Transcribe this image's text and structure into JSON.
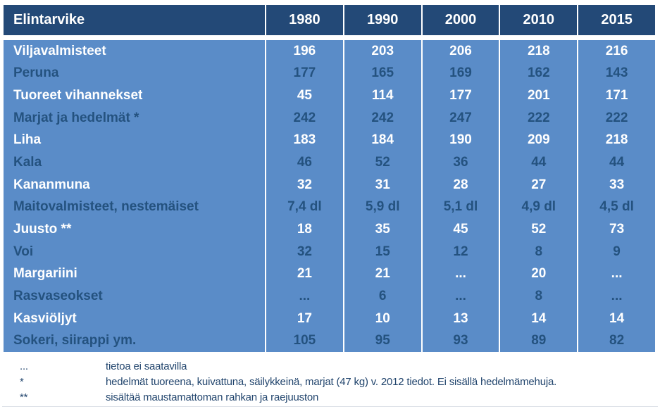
{
  "table": {
    "header_label": "Elintarvike",
    "years": [
      "1980",
      "1990",
      "2000",
      "2010",
      "2015"
    ],
    "rows": [
      {
        "label": "Viljavalmisteet",
        "values": [
          "196",
          "203",
          "206",
          "218",
          "216"
        ]
      },
      {
        "label": "Peruna",
        "values": [
          "177",
          "165",
          "169",
          "162",
          "143"
        ]
      },
      {
        "label": "Tuoreet vihannekset",
        "values": [
          "45",
          "114",
          "177",
          "201",
          "171"
        ]
      },
      {
        "label": "Marjat ja hedelmät *",
        "values": [
          "242",
          "242",
          "247",
          "222",
          "222"
        ]
      },
      {
        "label": "Liha",
        "values": [
          "183",
          "184",
          "190",
          "209",
          "218"
        ]
      },
      {
        "label": "Kala",
        "values": [
          "46",
          "52",
          "36",
          "44",
          "44"
        ]
      },
      {
        "label": "Kananmuna",
        "values": [
          "32",
          "31",
          "28",
          "27",
          "33"
        ]
      },
      {
        "label": "Maitovalmisteet, nestemäiset",
        "values": [
          "7,4 dl",
          "5,9 dl",
          "5,1 dl",
          "4,9 dl",
          "4,5 dl"
        ]
      },
      {
        "label": "Juusto **",
        "values": [
          "18",
          "35",
          "45",
          "52",
          "73"
        ]
      },
      {
        "label": "Voi",
        "values": [
          "32",
          "15",
          "12",
          "8",
          "9"
        ]
      },
      {
        "label": "Margariini",
        "values": [
          "21",
          "21",
          "...",
          "20",
          "..."
        ]
      },
      {
        "label": "Rasvaseokset",
        "values": [
          "...",
          "6",
          "...",
          "8",
          "..."
        ]
      },
      {
        "label": "Kasviöljyt",
        "values": [
          "17",
          "10",
          "13",
          "14",
          "14"
        ]
      },
      {
        "label": "Sokeri, siirappi ym.",
        "values": [
          "105",
          "95",
          "93",
          "89",
          "82"
        ]
      }
    ]
  },
  "footnotes": [
    {
      "marker": "...",
      "text": "tietoa ei saatavilla"
    },
    {
      "marker": "*",
      "text": "hedelmät tuoreena, kuivattuna, säilykkeinä, marjat (47 kg) v. 2012 tiedot. Ei sisällä hedelmämehuja."
    },
    {
      "marker": "**",
      "text": "sisältää maustamattoman rahkan ja raejuuston"
    }
  ],
  "colors": {
    "header_bg": "#234977",
    "body_bg": "#5a8cc8",
    "light_text": "#ffffff",
    "dark_text": "#24527f",
    "footnote_text": "#23466e"
  },
  "chart_data": {
    "type": "table",
    "title": "Elintarvike",
    "columns": [
      "Elintarvike",
      "1980",
      "1990",
      "2000",
      "2010",
      "2015"
    ],
    "rows": [
      [
        "Viljavalmisteet",
        196,
        203,
        206,
        218,
        216
      ],
      [
        "Peruna",
        177,
        165,
        169,
        162,
        143
      ],
      [
        "Tuoreet vihannekset",
        45,
        114,
        177,
        201,
        171
      ],
      [
        "Marjat ja hedelmät *",
        242,
        242,
        247,
        222,
        222
      ],
      [
        "Liha",
        183,
        184,
        190,
        209,
        218
      ],
      [
        "Kala",
        46,
        52,
        36,
        44,
        44
      ],
      [
        "Kananmuna",
        32,
        31,
        28,
        27,
        33
      ],
      [
        "Maitovalmisteet, nestemäiset",
        "7,4 dl",
        "5,9 dl",
        "5,1 dl",
        "4,9 dl",
        "4,5 dl"
      ],
      [
        "Juusto **",
        18,
        35,
        45,
        52,
        73
      ],
      [
        "Voi",
        32,
        15,
        12,
        8,
        9
      ],
      [
        "Margariini",
        21,
        21,
        "...",
        20,
        "..."
      ],
      [
        "Rasvaseokset",
        "...",
        6,
        "...",
        8,
        "..."
      ],
      [
        "Kasviöljyt",
        17,
        10,
        13,
        14,
        14
      ],
      [
        "Sokeri, siirappi ym.",
        105,
        95,
        93,
        89,
        82
      ]
    ],
    "notes": [
      "... = tietoa ei saatavilla",
      "* = hedelmät tuoreena, kuivattuna, säilykkeinä, marjat (47 kg) v. 2012 tiedot. Ei sisällä hedelmämehuja.",
      "** = sisältää maustamattoman rahkan ja raejuuston"
    ],
    "layout": {
      "banded_text_rows": true,
      "header_position": "top",
      "grid": "vertical-separators-only"
    }
  }
}
